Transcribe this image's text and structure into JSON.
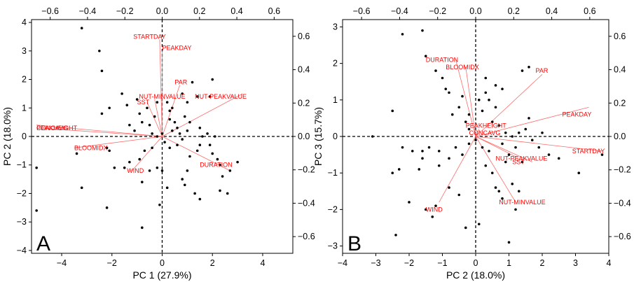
{
  "chart_data": [
    {
      "type": "scatter",
      "panel_letter": "A",
      "xlabel": "PC 1 (27.9%)",
      "ylabel": "PC 2 (18.0%)",
      "xlim": [
        -5.2,
        5.2
      ],
      "ylim": [
        -4.1,
        4.1
      ],
      "x_ticks": [
        -4,
        -2,
        0,
        2,
        4
      ],
      "y_ticks": [
        -4,
        -3,
        -2,
        -1,
        0,
        1,
        2,
        3,
        4
      ],
      "top_axis": {
        "lim": [
          -0.7,
          0.7
        ],
        "ticks": [
          -0.6,
          -0.4,
          -0.2,
          0.0,
          0.2,
          0.4,
          0.6
        ],
        "tick_labels": [
          "−0.6",
          "−0.4",
          "−0.2",
          "0.0",
          "0.2",
          "0.4",
          "0.6"
        ]
      },
      "right_axis": {
        "lim": [
          -0.7,
          0.7
        ],
        "ticks": [
          -0.6,
          -0.4,
          -0.2,
          0.0,
          0.2,
          0.4,
          0.6
        ],
        "tick_labels": [
          "−0.6",
          "−0.4",
          "−0.2",
          "0.0",
          "0.2",
          "0.4",
          "0.6"
        ]
      },
      "grid": false,
      "points": [
        [
          -3.2,
          3.8
        ],
        [
          -2.5,
          3.0
        ],
        [
          -2.4,
          2.3
        ],
        [
          -2.4,
          0.8
        ],
        [
          -2.1,
          1.0
        ],
        [
          -1.6,
          1.5
        ],
        [
          -1.4,
          1.1
        ],
        [
          -1.3,
          0.4
        ],
        [
          -1.1,
          0.2
        ],
        [
          -1.0,
          1.3
        ],
        [
          -0.9,
          0.8
        ],
        [
          -0.8,
          0.5
        ],
        [
          -0.6,
          1.0
        ],
        [
          -0.5,
          0.4
        ],
        [
          -0.4,
          0.1
        ],
        [
          -0.3,
          0.7
        ],
        [
          -0.2,
          1.2
        ],
        [
          0.2,
          1.2
        ],
        [
          0.3,
          0.9
        ],
        [
          0.4,
          1.0
        ],
        [
          0.3,
          0.6
        ],
        [
          0.4,
          0.2
        ],
        [
          0.5,
          0.5
        ],
        [
          0.6,
          0.3
        ],
        [
          0.7,
          0.1
        ],
        [
          0.9,
          0.7
        ],
        [
          1.0,
          1.2
        ],
        [
          1.1,
          0.5
        ],
        [
          1.0,
          0.2
        ],
        [
          0.8,
          -0.1
        ],
        [
          0.6,
          -0.3
        ],
        [
          0.3,
          -0.4
        ],
        [
          0.1,
          -0.2
        ],
        [
          0.0,
          0.1
        ],
        [
          -0.2,
          0.0
        ],
        [
          -0.4,
          -0.4
        ],
        [
          -0.7,
          -0.5
        ],
        [
          -0.9,
          -0.8
        ],
        [
          -1.3,
          -0.9
        ],
        [
          -1.5,
          -1.1
        ],
        [
          -1.9,
          -1.1
        ],
        [
          -2.1,
          -0.5
        ],
        [
          -2.2,
          -0.4
        ],
        [
          -3.4,
          -0.6
        ],
        [
          -3.2,
          -1.8
        ],
        [
          -5.0,
          -1.1
        ],
        [
          -5.0,
          -2.6
        ],
        [
          -0.8,
          -1.6
        ],
        [
          -0.5,
          -1.2
        ],
        [
          -0.2,
          -1.1
        ],
        [
          0.0,
          -1.2
        ],
        [
          0.2,
          -1.8
        ],
        [
          -0.1,
          -2.4
        ],
        [
          -0.8,
          -3.2
        ],
        [
          -2.2,
          -2.5
        ],
        [
          0.8,
          -1.5
        ],
        [
          0.9,
          -1.7
        ],
        [
          1.0,
          -1.2
        ],
        [
          1.1,
          -0.7
        ],
        [
          1.4,
          -0.5
        ],
        [
          1.5,
          -0.3
        ],
        [
          1.6,
          0.0
        ],
        [
          1.5,
          0.3
        ],
        [
          1.8,
          0.1
        ],
        [
          1.9,
          -0.3
        ],
        [
          2.0,
          -0.6
        ],
        [
          2.1,
          0.0
        ],
        [
          2.2,
          -0.8
        ],
        [
          2.3,
          -1.0
        ],
        [
          2.4,
          -1.4
        ],
        [
          2.7,
          -1.2
        ],
        [
          3.0,
          -0.9
        ],
        [
          2.3,
          -1.9
        ],
        [
          2.6,
          -2.0
        ],
        [
          1.5,
          -2.2
        ],
        [
          1.3,
          -2.0
        ],
        [
          1.9,
          1.4
        ],
        [
          2.0,
          2.0
        ],
        [
          1.4,
          1.4
        ],
        [
          1.2,
          1.9
        ],
        [
          0.8,
          1.5
        ]
      ],
      "vectors": [
        {
          "label": "STARTDAY",
          "end": [
            -0.1,
            3.4
          ],
          "label_at": [
            -0.5,
            3.5
          ],
          "anchor": "middle"
        },
        {
          "label": "PEAKDAY",
          "end": [
            0.0,
            3.0
          ],
          "label_at": [
            0.0,
            3.1
          ],
          "anchor": "start"
        },
        {
          "label": "PAR",
          "end": [
            0.7,
            1.8
          ],
          "label_at": [
            0.5,
            1.9
          ],
          "anchor": "start"
        },
        {
          "label": "NUT-MINVALUE",
          "end": [
            -0.3,
            1.3
          ],
          "label_at": [
            0.0,
            1.4
          ],
          "anchor": "middle"
        },
        {
          "label": "SST",
          "end": [
            -0.6,
            1.2
          ],
          "label_at": [
            -1.0,
            1.2
          ],
          "anchor": "start"
        },
        {
          "label": "NUT-PEAKVALUE",
          "end": [
            3.2,
            1.5
          ],
          "label_at": [
            1.3,
            1.4
          ],
          "anchor": "start"
        },
        {
          "label": "PEAKHEIGHT",
          "end": [
            -5.0,
            0.4
          ],
          "label_at": [
            -5.0,
            0.3
          ],
          "anchor": "start"
        },
        {
          "label": "CONCAVG",
          "end": [
            -5.0,
            0.3
          ],
          "label_at": [
            -5.0,
            0.3
          ],
          "anchor": "start"
        },
        {
          "label": "BLOOMIDX",
          "end": [
            -3.5,
            -0.4
          ],
          "label_at": [
            -3.5,
            -0.4
          ],
          "anchor": "start"
        },
        {
          "label": "WIND",
          "end": [
            -1.2,
            -1.2
          ],
          "label_at": [
            -1.4,
            -1.2
          ],
          "anchor": "start"
        },
        {
          "label": "DURATION",
          "end": [
            2.7,
            -1.2
          ],
          "label_at": [
            1.5,
            -1.0
          ],
          "anchor": "start"
        }
      ]
    },
    {
      "type": "scatter",
      "panel_letter": "B",
      "xlabel": "PC 2 (18.0%)",
      "ylabel": "PC 3 (15.7%)",
      "xlim": [
        -4.0,
        4.0
      ],
      "ylim": [
        -3.2,
        3.2
      ],
      "x_ticks": [
        -4,
        -3,
        -2,
        -1,
        0,
        1,
        2,
        3,
        4
      ],
      "y_ticks": [
        -3,
        -2,
        -1,
        0,
        1,
        2,
        3
      ],
      "top_axis": {
        "lim": [
          -0.7,
          0.7
        ],
        "ticks": [
          -0.6,
          -0.4,
          -0.2,
          0.0,
          0.2,
          0.4,
          0.6
        ],
        "tick_labels": [
          "−0.6",
          "−0.4",
          "−0.2",
          "0.0",
          "0.2",
          "0.4",
          "0.6"
        ]
      },
      "right_axis": {
        "lim": [
          -0.7,
          0.7
        ],
        "ticks": [
          -0.6,
          -0.4,
          -0.2,
          0.0,
          0.2,
          0.4,
          0.6
        ],
        "tick_labels": [
          "−0.6",
          "−0.4",
          "−0.2",
          "0.0",
          "0.2",
          "0.4",
          "0.6"
        ]
      },
      "grid": false,
      "points": [
        [
          -2.2,
          2.8
        ],
        [
          -1.6,
          2.9
        ],
        [
          -1.5,
          2.2
        ],
        [
          -1.2,
          1.8
        ],
        [
          -1.0,
          1.6
        ],
        [
          -0.9,
          1.3
        ],
        [
          -0.8,
          1.2
        ],
        [
          -0.7,
          0.6
        ],
        [
          -0.5,
          0.8
        ],
        [
          -0.3,
          0.4
        ],
        [
          -0.2,
          0.2
        ],
        [
          0.1,
          1.0
        ],
        [
          0.3,
          1.2
        ],
        [
          0.4,
          1.0
        ],
        [
          0.6,
          0.8
        ],
        [
          0.5,
          0.4
        ],
        [
          0.7,
          0.3
        ],
        [
          0.9,
          0.1
        ],
        [
          0.8,
          -0.2
        ],
        [
          1.1,
          0.0
        ],
        [
          1.3,
          0.1
        ],
        [
          1.5,
          0.2
        ],
        [
          1.6,
          0.5
        ],
        [
          1.7,
          -0.1
        ],
        [
          1.9,
          -0.3
        ],
        [
          2.0,
          0.1
        ],
        [
          2.2,
          -0.5
        ],
        [
          2.5,
          -0.6
        ],
        [
          3.1,
          -1.0
        ],
        [
          3.8,
          -0.5
        ],
        [
          1.4,
          1.8
        ],
        [
          1.6,
          1.9
        ],
        [
          0.4,
          -0.4
        ],
        [
          0.2,
          -0.3
        ],
        [
          0.0,
          -0.1
        ],
        [
          -0.2,
          -0.2
        ],
        [
          -0.4,
          -0.5
        ],
        [
          -0.6,
          -0.3
        ],
        [
          -0.8,
          -0.6
        ],
        [
          -1.1,
          -0.4
        ],
        [
          -1.4,
          -0.3
        ],
        [
          -1.6,
          -0.6
        ],
        [
          -1.7,
          -0.9
        ],
        [
          -1.9,
          -0.4
        ],
        [
          -2.2,
          -0.3
        ],
        [
          -2.3,
          -0.9
        ],
        [
          -2.5,
          0.7
        ],
        [
          -3.1,
          0.0
        ],
        [
          -2.5,
          -1.0
        ],
        [
          -2.4,
          -2.7
        ],
        [
          -1.6,
          -0.4
        ],
        [
          -1.5,
          -2.0
        ],
        [
          -1.3,
          -2.2
        ],
        [
          -0.5,
          -1.6
        ],
        [
          -0.3,
          -2.5
        ],
        [
          0.1,
          -2.4
        ],
        [
          0.3,
          -0.8
        ],
        [
          0.5,
          -1.0
        ],
        [
          0.6,
          -1.4
        ],
        [
          0.7,
          -1.5
        ],
        [
          0.8,
          -1.7
        ],
        [
          1.0,
          -2.9
        ],
        [
          1.2,
          -2.0
        ],
        [
          1.1,
          -1.3
        ],
        [
          1.3,
          -1.5
        ],
        [
          -2.0,
          -1.8
        ],
        [
          -1.2,
          -1.9
        ],
        [
          -1.1,
          -0.8
        ],
        [
          -0.8,
          -1.4
        ],
        [
          0.9,
          -0.7
        ],
        [
          1.0,
          -0.5
        ],
        [
          1.2,
          -0.3
        ],
        [
          1.4,
          -0.7
        ],
        [
          0.3,
          1.6
        ],
        [
          0.6,
          1.4
        ],
        [
          0.8,
          1.3
        ],
        [
          -0.4,
          1.1
        ],
        [
          -0.2,
          0.6
        ],
        [
          0.2,
          0.7
        ]
      ],
      "vectors": [
        {
          "label": "DURATION",
          "end": [
            -0.6,
            2.1
          ],
          "label_at": [
            -1.5,
            2.1
          ],
          "anchor": "start"
        },
        {
          "label": "BLOOMIDX",
          "end": [
            -0.3,
            1.9
          ],
          "label_at": [
            -0.9,
            1.9
          ],
          "anchor": "start"
        },
        {
          "label": "PAR",
          "end": [
            2.0,
            1.7
          ],
          "label_at": [
            1.8,
            1.8
          ],
          "anchor": "start"
        },
        {
          "label": "PEAKDAY",
          "end": [
            3.4,
            0.8
          ],
          "label_at": [
            2.6,
            0.6
          ],
          "anchor": "start"
        },
        {
          "label": "PEAKHEIGHT",
          "end": [
            0.1,
            0.2
          ],
          "label_at": [
            -0.3,
            0.3
          ],
          "anchor": "start"
        },
        {
          "label": "CONCAVG",
          "end": [
            0.0,
            0.1
          ],
          "label_at": [
            -0.2,
            0.1
          ],
          "anchor": "start"
        },
        {
          "label": "STARTDAY",
          "end": [
            3.8,
            -0.4
          ],
          "label_at": [
            2.9,
            -0.4
          ],
          "anchor": "start"
        },
        {
          "label": "NUT-PEAKVALUE",
          "end": [
            1.7,
            -0.7
          ],
          "label_at": [
            0.6,
            -0.6
          ],
          "anchor": "start"
        },
        {
          "label": "SST",
          "end": [
            1.3,
            -0.6
          ],
          "label_at": [
            1.1,
            -0.7
          ],
          "anchor": "start"
        },
        {
          "label": "NUT-MINVALUE",
          "end": [
            1.2,
            -1.8
          ],
          "label_at": [
            0.7,
            -1.8
          ],
          "anchor": "start"
        },
        {
          "label": "WIND",
          "end": [
            -1.1,
            -1.8
          ],
          "label_at": [
            -1.5,
            -2.0
          ],
          "anchor": "start"
        }
      ]
    }
  ]
}
